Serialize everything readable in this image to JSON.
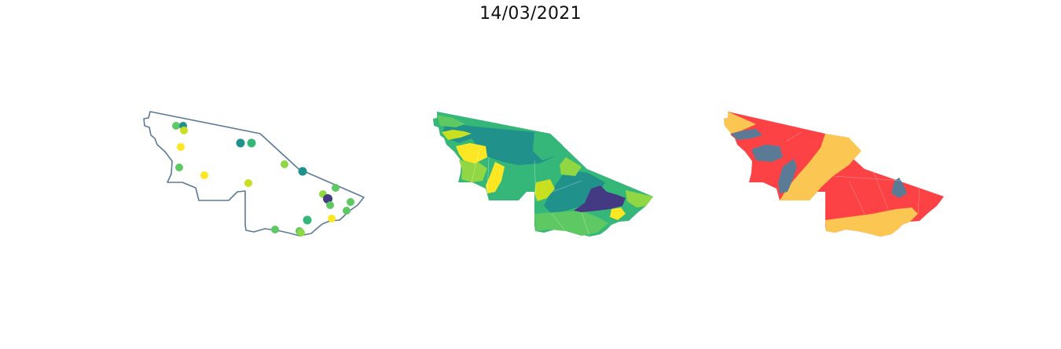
{
  "title": "14/03/2021",
  "colors": {
    "outline": "#5b7a96",
    "viridis_dark_purple": "#443a83",
    "viridis_teal": "#21918c",
    "viridis_green": "#35b779",
    "viridis_light_green": "#5ec962",
    "viridis_lime": "#90d743",
    "viridis_yellow_green": "#c8e020",
    "viridis_yellow": "#fde725",
    "risk_red": "#fc4244",
    "risk_orange": "#fbc652",
    "risk_slate": "#5b7a96"
  },
  "panels": [
    {
      "name": "point-map",
      "kind": "state outline with municipality markers"
    },
    {
      "name": "viridis-choropleth",
      "kind": "municipality choropleth (viridis scale)"
    },
    {
      "name": "risk-choropleth",
      "kind": "municipality choropleth (three categories)"
    }
  ]
}
